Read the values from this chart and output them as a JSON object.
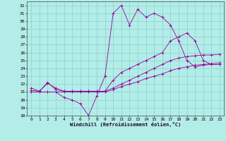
{
  "title": "",
  "xlabel": "Windchill (Refroidissement éolien,°C)",
  "background_color": "#b2ede8",
  "grid_color": "#8ecfcb",
  "line_color": "#990099",
  "xlim": [
    -0.5,
    23.5
  ],
  "ylim": [
    18,
    32.5
  ],
  "xticks": [
    0,
    1,
    2,
    3,
    4,
    5,
    6,
    7,
    8,
    9,
    10,
    11,
    12,
    13,
    14,
    15,
    16,
    17,
    18,
    19,
    20,
    21,
    22,
    23
  ],
  "yticks": [
    18,
    19,
    20,
    21,
    22,
    23,
    24,
    25,
    26,
    27,
    28,
    29,
    30,
    31,
    32
  ],
  "series": [
    {
      "x": [
        0,
        1,
        2,
        3,
        4,
        5,
        6,
        7,
        8,
        9,
        10,
        11,
        12,
        13,
        14,
        15,
        16,
        17,
        18,
        19,
        20,
        21,
        22,
        23
      ],
      "y": [
        21.0,
        21.0,
        21.0,
        21.0,
        21.0,
        21.0,
        21.0,
        21.0,
        21.0,
        21.0,
        21.3,
        21.7,
        22.0,
        22.3,
        22.7,
        23.0,
        23.3,
        23.7,
        24.0,
        24.2,
        24.4,
        24.5,
        24.6,
        24.7
      ]
    },
    {
      "x": [
        0,
        1,
        2,
        3,
        4,
        5,
        6,
        7,
        8,
        9,
        10,
        11,
        12,
        13,
        14,
        15,
        16,
        17,
        18,
        19,
        20,
        21,
        22,
        23
      ],
      "y": [
        21.2,
        21.1,
        22.2,
        21.3,
        21.1,
        21.1,
        21.1,
        21.1,
        21.1,
        21.1,
        21.5,
        22.0,
        22.5,
        23.0,
        23.5,
        24.0,
        24.5,
        25.0,
        25.3,
        25.5,
        25.6,
        25.7,
        25.7,
        25.8
      ]
    },
    {
      "x": [
        0,
        1,
        2,
        3,
        4,
        5,
        6,
        7,
        8,
        9,
        10,
        11,
        12,
        13,
        14,
        15,
        16,
        17,
        18,
        19,
        20,
        21,
        22,
        23
      ],
      "y": [
        21.0,
        21.0,
        21.0,
        21.0,
        20.3,
        20.0,
        19.5,
        18.0,
        20.5,
        23.0,
        31.0,
        32.0,
        29.5,
        31.5,
        30.5,
        31.0,
        30.5,
        29.5,
        27.5,
        25.0,
        24.2,
        24.4,
        24.5,
        24.5
      ]
    },
    {
      "x": [
        0,
        1,
        2,
        3,
        4,
        5,
        6,
        7,
        8,
        9,
        10,
        11,
        12,
        13,
        14,
        15,
        16,
        17,
        18,
        19,
        20,
        21,
        22,
        23
      ],
      "y": [
        21.5,
        21.1,
        22.1,
        21.5,
        21.1,
        21.1,
        21.1,
        21.1,
        21.1,
        21.1,
        22.5,
        23.5,
        24.0,
        24.5,
        25.0,
        25.5,
        26.0,
        27.5,
        28.0,
        28.5,
        27.5,
        25.0,
        24.5,
        24.5
      ]
    }
  ]
}
